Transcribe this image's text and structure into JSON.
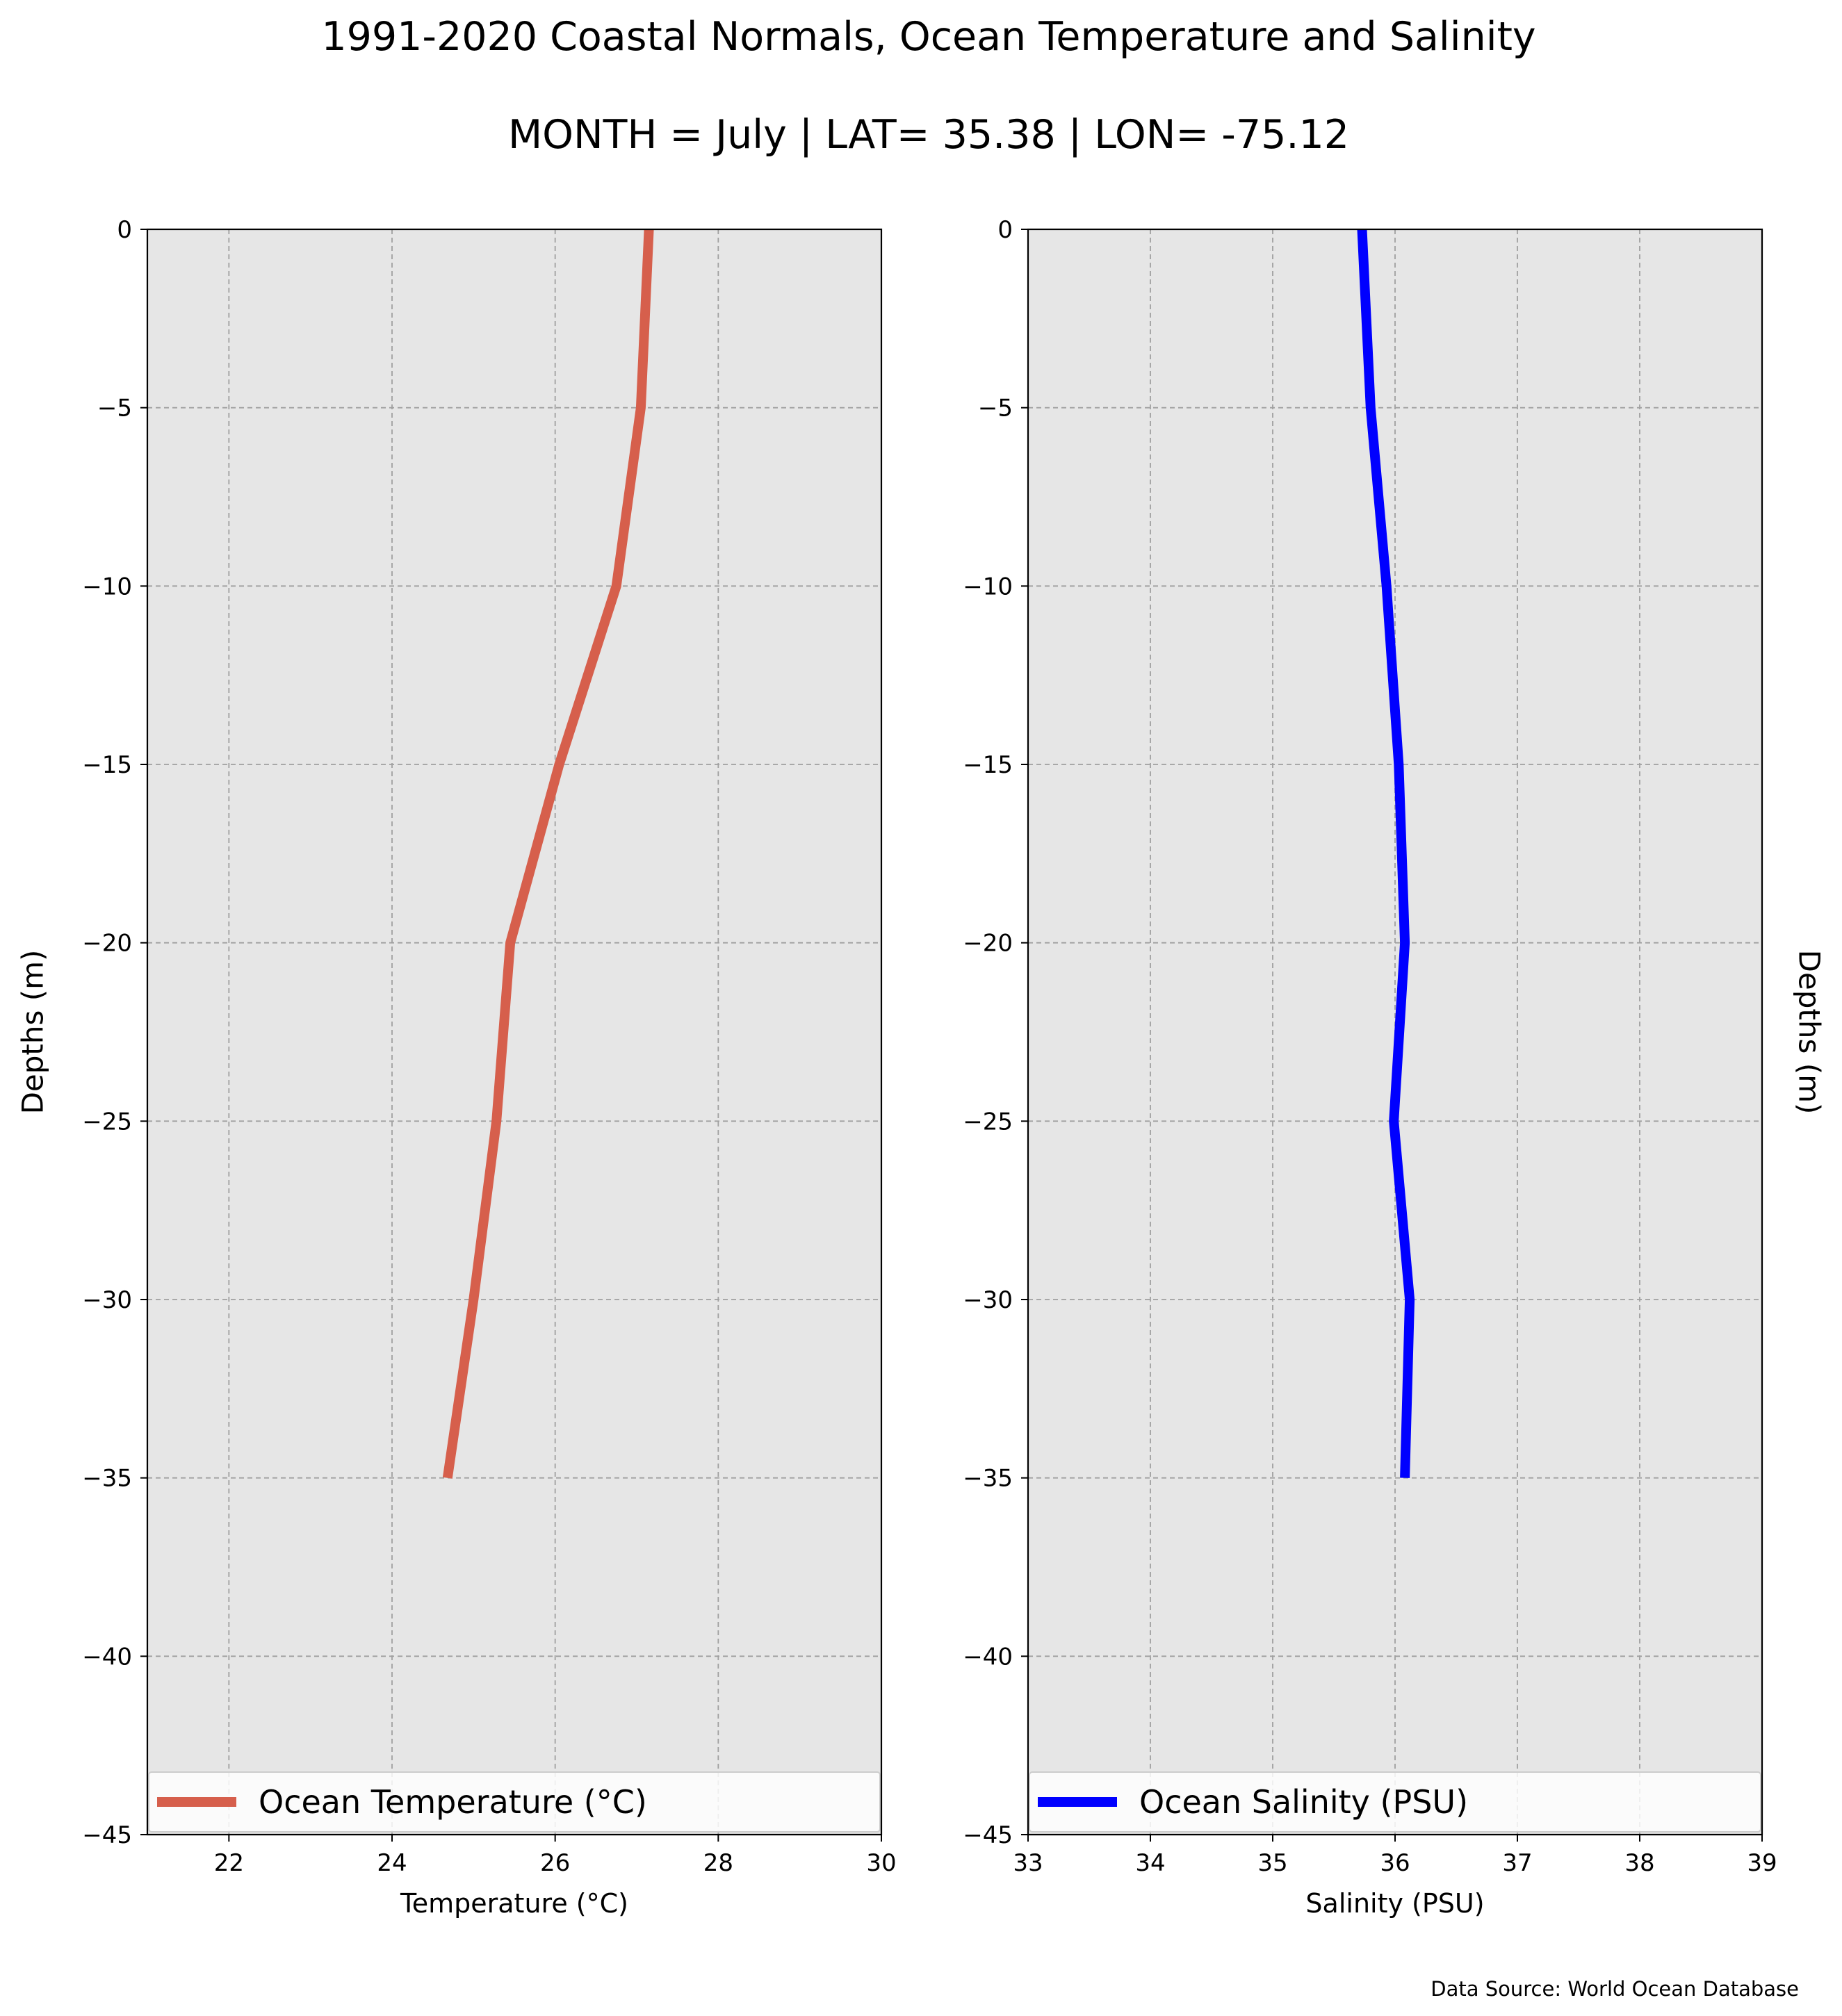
{
  "figure": {
    "title_line1": "1991-2020 Coastal Normals, Ocean Temperature and Salinity",
    "title_line2": "MONTH = July | LAT= 35.38 | LON= -75.12",
    "source": "Data Source: World Ocean Database"
  },
  "chart_data": [
    {
      "type": "line",
      "orientation": "vertical-profile",
      "xlabel": "Temperature ($^\\circ$C)",
      "xlabel_display": "Temperature (°C)",
      "ylabel": "Depths (m)",
      "xlim": [
        21,
        30
      ],
      "ylim": [
        -45,
        0
      ],
      "xticks": [
        22,
        24,
        26,
        28,
        30
      ],
      "yticks": [
        0,
        -5,
        -10,
        -15,
        -20,
        -25,
        -30,
        -35,
        -40,
        -45
      ],
      "ytick_labels": [
        "0",
        "−5",
        "−10",
        "−15",
        "−20",
        "−25",
        "−30",
        "−35",
        "−40",
        "−45"
      ],
      "grid": true,
      "background": "#e6e6e6",
      "legend_position": "bottom",
      "series": [
        {
          "name": "Ocean Temperature ($^\\circ$C)",
          "display_name": "Ocean Temperature (°C)",
          "color": "#d65f4c",
          "depth": [
            0,
            -5,
            -10,
            -15,
            -20,
            -25,
            -30,
            -35
          ],
          "values": [
            27.15,
            27.05,
            26.75,
            26.05,
            25.45,
            25.28,
            25.0,
            24.68
          ]
        }
      ]
    },
    {
      "type": "line",
      "orientation": "vertical-profile",
      "xlabel": "Salinity (PSU)",
      "ylabel": "Depths (m)",
      "ylabel_side": "right",
      "xlim": [
        33,
        39
      ],
      "ylim": [
        -45,
        0
      ],
      "xticks": [
        33,
        34,
        35,
        36,
        37,
        38,
        39
      ],
      "yticks": [
        0,
        -5,
        -10,
        -15,
        -20,
        -25,
        -30,
        -35,
        -40,
        -45
      ],
      "ytick_labels": [
        "0",
        "−5",
        "−10",
        "−15",
        "−20",
        "−25",
        "−30",
        "−35",
        "−40",
        "−45"
      ],
      "grid": true,
      "background": "#e6e6e6",
      "legend_position": "bottom",
      "series": [
        {
          "name": "Ocean Salinity (PSU)",
          "color": "#0000ff",
          "depth": [
            0,
            -5,
            -10,
            -15,
            -20,
            -25,
            -30,
            -35
          ],
          "values": [
            35.73,
            35.8,
            35.93,
            36.03,
            36.08,
            35.99,
            36.12,
            36.08
          ]
        }
      ]
    }
  ]
}
